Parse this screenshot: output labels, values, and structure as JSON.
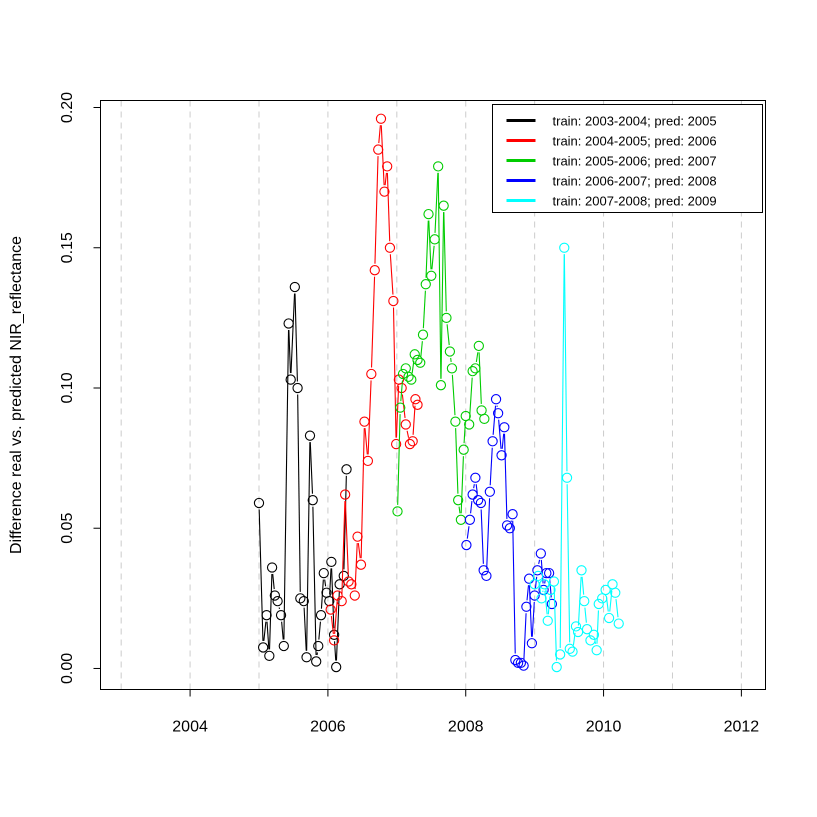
{
  "chart_data": {
    "type": "scatter",
    "title": "",
    "xlabel": "",
    "ylabel": "Difference real vs. predicted NIR_reflectance",
    "xlim": [
      2002.7,
      2012.35
    ],
    "ylim": [
      -0.0075,
      0.2025
    ],
    "x_ticks": [
      2004,
      2006,
      2008,
      2010,
      2012
    ],
    "x_tick_labels": [
      "2004",
      "2006",
      "2008",
      "2010",
      "2012"
    ],
    "y_ticks": [
      0.0,
      0.05,
      0.1,
      0.15,
      0.2
    ],
    "y_tick_labels": [
      "0.00",
      "0.05",
      "0.10",
      "0.15",
      "0.20"
    ],
    "vertical_grid": [
      2003,
      2004,
      2005,
      2006,
      2007,
      2008,
      2009,
      2010,
      2011,
      2012
    ],
    "grid": "vertical dashed",
    "legend_position": "top-right",
    "series": [
      {
        "name": "train: 2003-2004; pred: 2005",
        "color": "#000000",
        "points": [
          [
            2005.0,
            0.059
          ],
          [
            2005.06,
            0.0075
          ],
          [
            2005.11,
            0.019
          ],
          [
            2005.15,
            0.0045
          ],
          [
            2005.19,
            0.036
          ],
          [
            2005.23,
            0.026
          ],
          [
            2005.27,
            0.024
          ],
          [
            2005.32,
            0.019
          ],
          [
            2005.36,
            0.008
          ],
          [
            2005.43,
            0.123
          ],
          [
            2005.46,
            0.103
          ],
          [
            2005.52,
            0.136
          ],
          [
            2005.56,
            0.1
          ],
          [
            2005.6,
            0.025
          ],
          [
            2005.65,
            0.024
          ],
          [
            2005.69,
            0.004
          ],
          [
            2005.74,
            0.083
          ],
          [
            2005.78,
            0.06
          ],
          [
            2005.83,
            0.0025
          ],
          [
            2005.86,
            0.008
          ],
          [
            2005.9,
            0.019
          ],
          [
            2005.94,
            0.034
          ],
          [
            2005.98,
            0.027
          ],
          [
            2006.02,
            0.024
          ],
          [
            2006.05,
            0.038
          ],
          [
            2006.09,
            0.012
          ],
          [
            2006.12,
            0.0005
          ],
          [
            2006.17,
            0.03
          ],
          [
            2006.23,
            0.033
          ],
          [
            2006.27,
            0.071
          ]
        ]
      },
      {
        "name": "train: 2004-2005; pred: 2006",
        "color": "#ff0000",
        "points": [
          [
            2006.04,
            0.021
          ],
          [
            2006.09,
            0.01
          ],
          [
            2006.14,
            0.026
          ],
          [
            2006.2,
            0.024
          ],
          [
            2006.25,
            0.062
          ],
          [
            2006.3,
            0.031
          ],
          [
            2006.34,
            0.03
          ],
          [
            2006.39,
            0.026
          ],
          [
            2006.43,
            0.047
          ],
          [
            2006.48,
            0.037
          ],
          [
            2006.53,
            0.088
          ],
          [
            2006.58,
            0.074
          ],
          [
            2006.63,
            0.105
          ],
          [
            2006.68,
            0.142
          ],
          [
            2006.73,
            0.185
          ],
          [
            2006.77,
            0.196
          ],
          [
            2006.82,
            0.17
          ],
          [
            2006.86,
            0.179
          ],
          [
            2006.9,
            0.15
          ],
          [
            2006.95,
            0.131
          ],
          [
            2006.99,
            0.08
          ],
          [
            2007.03,
            0.103
          ],
          [
            2007.07,
            0.1
          ],
          [
            2007.13,
            0.087
          ],
          [
            2007.19,
            0.08
          ],
          [
            2007.23,
            0.081
          ],
          [
            2007.27,
            0.096
          ],
          [
            2007.3,
            0.094
          ]
        ]
      },
      {
        "name": "train: 2005-2006; pred: 2007",
        "color": "#00cc00",
        "points": [
          [
            2007.01,
            0.056
          ],
          [
            2007.05,
            0.093
          ],
          [
            2007.09,
            0.105
          ],
          [
            2007.13,
            0.107
          ],
          [
            2007.17,
            0.104
          ],
          [
            2007.21,
            0.103
          ],
          [
            2007.26,
            0.112
          ],
          [
            2007.3,
            0.11
          ],
          [
            2007.34,
            0.109
          ],
          [
            2007.38,
            0.119
          ],
          [
            2007.42,
            0.137
          ],
          [
            2007.46,
            0.162
          ],
          [
            2007.5,
            0.14
          ],
          [
            2007.55,
            0.153
          ],
          [
            2007.6,
            0.179
          ],
          [
            2007.64,
            0.101
          ],
          [
            2007.68,
            0.165
          ],
          [
            2007.72,
            0.125
          ],
          [
            2007.77,
            0.113
          ],
          [
            2007.8,
            0.107
          ],
          [
            2007.85,
            0.088
          ],
          [
            2007.89,
            0.06
          ],
          [
            2007.93,
            0.053
          ],
          [
            2007.97,
            0.078
          ],
          [
            2008.0,
            0.09
          ],
          [
            2008.05,
            0.087
          ],
          [
            2008.1,
            0.106
          ],
          [
            2008.14,
            0.107
          ],
          [
            2008.19,
            0.115
          ],
          [
            2008.23,
            0.092
          ],
          [
            2008.27,
            0.089
          ]
        ]
      },
      {
        "name": "train: 2006-2007; pred: 2008",
        "color": "#0000ff",
        "points": [
          [
            2008.01,
            0.044
          ],
          [
            2008.06,
            0.053
          ],
          [
            2008.1,
            0.062
          ],
          [
            2008.14,
            0.068
          ],
          [
            2008.18,
            0.06
          ],
          [
            2008.22,
            0.059
          ],
          [
            2008.26,
            0.035
          ],
          [
            2008.3,
            0.033
          ],
          [
            2008.35,
            0.063
          ],
          [
            2008.39,
            0.081
          ],
          [
            2008.44,
            0.096
          ],
          [
            2008.47,
            0.091
          ],
          [
            2008.52,
            0.076
          ],
          [
            2008.56,
            0.086
          ],
          [
            2008.6,
            0.051
          ],
          [
            2008.64,
            0.05
          ],
          [
            2008.68,
            0.055
          ],
          [
            2008.72,
            0.003
          ],
          [
            2008.76,
            0.002
          ],
          [
            2008.8,
            0.002
          ],
          [
            2008.84,
            0.001
          ],
          [
            2008.88,
            0.022
          ],
          [
            2008.92,
            0.032
          ],
          [
            2008.96,
            0.009
          ],
          [
            2009.0,
            0.026
          ],
          [
            2009.04,
            0.035
          ],
          [
            2009.09,
            0.041
          ],
          [
            2009.13,
            0.028
          ],
          [
            2009.17,
            0.034
          ],
          [
            2009.21,
            0.034
          ],
          [
            2009.25,
            0.023
          ]
        ]
      },
      {
        "name": "train: 2007-2008; pred: 2009",
        "color": "#00ffff",
        "points": [
          [
            2009.0,
            0.03
          ],
          [
            2009.05,
            0.033
          ],
          [
            2009.1,
            0.025
          ],
          [
            2009.14,
            0.03
          ],
          [
            2009.19,
            0.017
          ],
          [
            2009.23,
            0.028
          ],
          [
            2009.28,
            0.031
          ],
          [
            2009.32,
            0.0005
          ],
          [
            2009.37,
            0.005
          ],
          [
            2009.43,
            0.15
          ],
          [
            2009.47,
            0.068
          ],
          [
            2009.51,
            0.007
          ],
          [
            2009.55,
            0.006
          ],
          [
            2009.6,
            0.015
          ],
          [
            2009.63,
            0.013
          ],
          [
            2009.68,
            0.035
          ],
          [
            2009.72,
            0.024
          ],
          [
            2009.76,
            0.014
          ],
          [
            2009.81,
            0.01
          ],
          [
            2009.86,
            0.012
          ],
          [
            2009.9,
            0.0065
          ],
          [
            2009.93,
            0.023
          ],
          [
            2009.98,
            0.025
          ],
          [
            2010.03,
            0.028
          ],
          [
            2010.08,
            0.018
          ],
          [
            2010.13,
            0.03
          ],
          [
            2010.17,
            0.027
          ],
          [
            2010.22,
            0.016
          ]
        ]
      }
    ]
  }
}
